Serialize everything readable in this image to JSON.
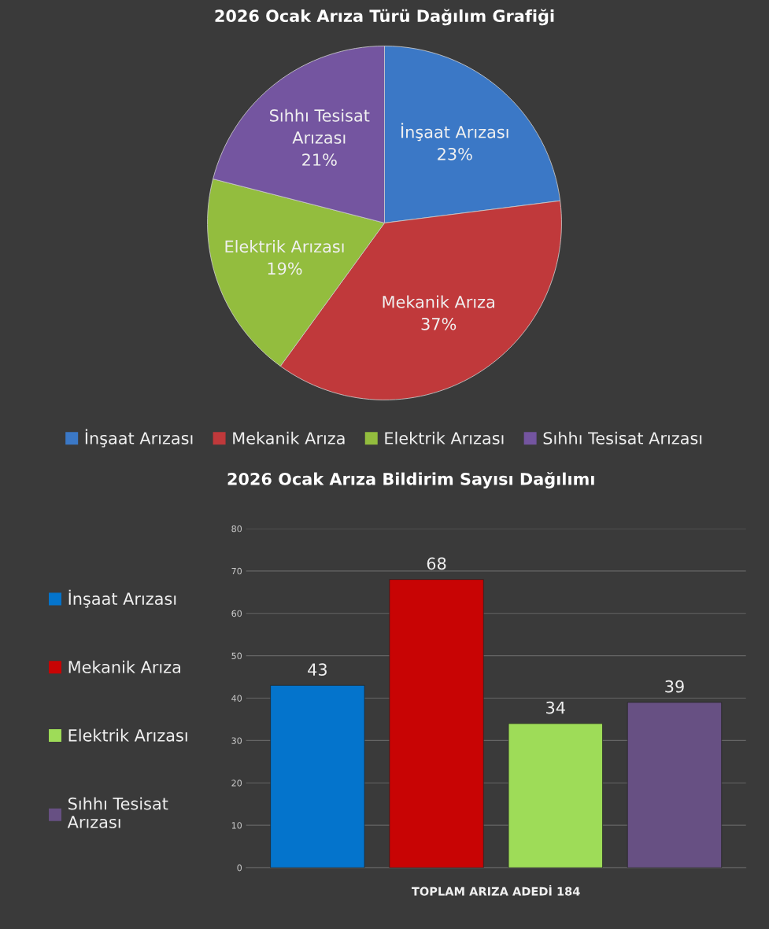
{
  "chart_data": [
    {
      "type": "pie",
      "title": "2026 Ocak Arıza Türü Dağılım Grafiği",
      "categories": [
        "İnşaat Arızası",
        "Mekanik Arıza",
        "Elektrik Arızası",
        "Sıhhı Tesisat Arızası"
      ],
      "values": [
        23,
        37,
        19,
        21
      ],
      "value_labels": [
        "23%",
        "37%",
        "19%",
        "21%"
      ],
      "colors": [
        "#3b78c6",
        "#c0393b",
        "#93bd3e",
        "#7455a0"
      ],
      "legend": "bottom"
    },
    {
      "type": "bar",
      "title": "2026 Ocak Arıza Bildirim Sayısı Dağılımı",
      "xlabel": "TOPLAM ARIZA ADEDİ 184",
      "categories": [
        null,
        null,
        null,
        null
      ],
      "series": [
        {
          "name": "İnşaat Arızası",
          "color": "#0474cc",
          "values": [
            43,
            null,
            null,
            null
          ]
        },
        {
          "name": "Mekanik Arıza",
          "color": "#c80404",
          "values": [
            null,
            68,
            null,
            null
          ]
        },
        {
          "name": "Elektrik Arızası",
          "color": "#9edc58",
          "values": [
            null,
            null,
            34,
            null
          ]
        },
        {
          "name": "Sıhhı Tesisat Arızası",
          "color": "#675083",
          "values": [
            null,
            null,
            null,
            39
          ]
        }
      ],
      "ylim": [
        0,
        80
      ],
      "yticks": [
        0,
        10,
        20,
        30,
        40,
        50,
        60,
        70,
        80
      ],
      "grid": "y",
      "data_labels": true,
      "legend": "left"
    }
  ]
}
